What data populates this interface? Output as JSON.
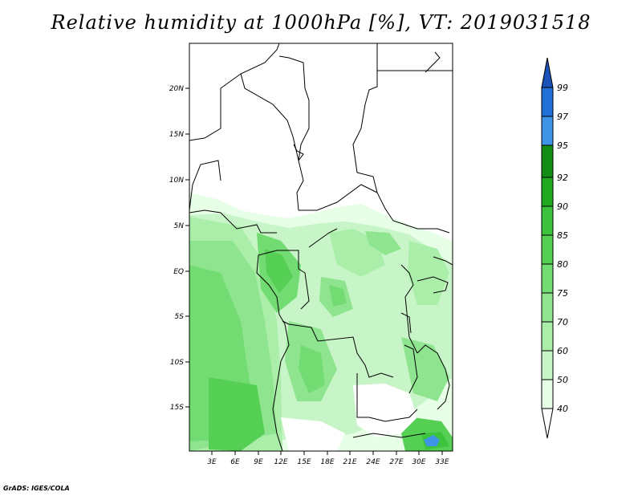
{
  "title": "Relative humidity at 1000hPa [%], VT: 2019031518",
  "credit": "GrADS: IGES/COLA",
  "map": {
    "lon_range": [
      0,
      34
    ],
    "lat_range": [
      -20,
      25
    ],
    "lon_ticks": [
      "3E",
      "6E",
      "9E",
      "12E",
      "15E",
      "18E",
      "21E",
      "24E",
      "27E",
      "30E",
      "33E"
    ],
    "lat_ticks": [
      "20N",
      "15N",
      "10N",
      "5N",
      "EQ",
      "5S",
      "10S",
      "15S"
    ]
  },
  "colorbar": {
    "labels": [
      "40",
      "50",
      "60",
      "70",
      "75",
      "80",
      "85",
      "90",
      "92",
      "95",
      "97",
      "99"
    ],
    "colors": [
      "#ffffff",
      "#e6ffe6",
      "#c8f5c8",
      "#aaeeaa",
      "#8fe58f",
      "#72dc72",
      "#55d055",
      "#3cc23c",
      "#22a922",
      "#128c12",
      "#3e95e8",
      "#1f6fd6",
      "#1b52b8"
    ]
  }
}
